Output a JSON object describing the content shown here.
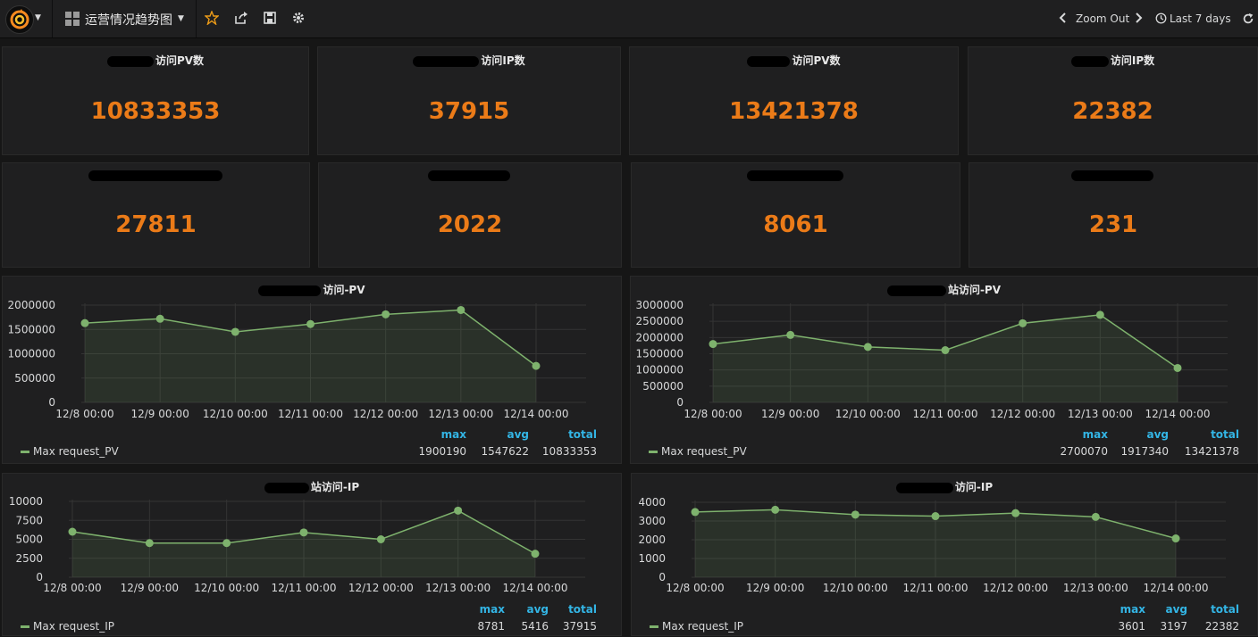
{
  "navbar": {
    "dashboard_title": "运营情况趋势图",
    "zoom_out_label": "Zoom Out",
    "time_range_label": "Last 7 days"
  },
  "colors": {
    "stat_value": "#eb7b18",
    "series": "#7eb26d",
    "legend_header": "#33b5e5"
  },
  "stats": [
    {
      "title_suffix": "访问PV数",
      "value": "10833353"
    },
    {
      "title_suffix": "访问IP数",
      "value": "37915"
    },
    {
      "title_suffix": "访问PV数",
      "value": "13421378"
    },
    {
      "title_suffix": "访问IP数",
      "value": "22382"
    },
    {
      "title_suffix": "",
      "value": "27811"
    },
    {
      "title_suffix": "",
      "value": "2022"
    },
    {
      "title_suffix": "",
      "value": "8061"
    },
    {
      "title_suffix": "",
      "value": "231"
    }
  ],
  "graphs": [
    {
      "title_suffix": "访问-PV",
      "legend_name": "Max request_PV",
      "legend_headers": [
        "max",
        "avg",
        "total"
      ],
      "legend_values": [
        "1900190",
        "1547622",
        "10833353"
      ]
    },
    {
      "title_suffix": "站访问-PV",
      "legend_name": "Max request_PV",
      "legend_headers": [
        "max",
        "avg",
        "total"
      ],
      "legend_values": [
        "2700070",
        "1917340",
        "13421378"
      ]
    },
    {
      "title_suffix": "站访问-IP",
      "legend_name": "Max request_IP",
      "legend_headers": [
        "max",
        "avg",
        "total"
      ],
      "legend_values": [
        "8781",
        "5416",
        "37915"
      ]
    },
    {
      "title_suffix": "访问-IP",
      "legend_name": "Max request_IP",
      "legend_headers": [
        "max",
        "avg",
        "total"
      ],
      "legend_values": [
        "3601",
        "3197",
        "22382"
      ]
    }
  ],
  "chart_data": [
    {
      "type": "area",
      "categories": [
        "12/8 00:00",
        "12/9 00:00",
        "12/10 00:00",
        "12/11 00:00",
        "12/12 00:00",
        "12/13 00:00",
        "12/14 00:00"
      ],
      "series": [
        {
          "name": "Max request_PV",
          "values": [
            1630000,
            1720000,
            1450000,
            1610000,
            1810000,
            1900190,
            750000
          ]
        }
      ],
      "yticks": [
        "0",
        "500000",
        "1000000",
        "1500000",
        "2000000"
      ],
      "ylim": [
        0,
        2000000
      ],
      "grid": true,
      "legend_position": "bottom"
    },
    {
      "type": "area",
      "categories": [
        "12/8 00:00",
        "12/9 00:00",
        "12/10 00:00",
        "12/11 00:00",
        "12/12 00:00",
        "12/13 00:00",
        "12/14 00:00"
      ],
      "series": [
        {
          "name": "Max request_PV",
          "values": [
            1800000,
            2080000,
            1710000,
            1610000,
            2440000,
            2700070,
            1060000
          ]
        }
      ],
      "yticks": [
        "0",
        "500000",
        "1000000",
        "1500000",
        "2000000",
        "2500000",
        "3000000"
      ],
      "ylim": [
        0,
        3000000
      ],
      "grid": true,
      "legend_position": "bottom"
    },
    {
      "type": "area",
      "categories": [
        "12/8 00:00",
        "12/9 00:00",
        "12/10 00:00",
        "12/11 00:00",
        "12/12 00:00",
        "12/13 00:00",
        "12/14 00:00"
      ],
      "series": [
        {
          "name": "Max request_IP",
          "values": [
            6000,
            4500,
            4500,
            5900,
            5000,
            8781,
            3100
          ]
        }
      ],
      "yticks": [
        "0",
        "2500",
        "5000",
        "7500",
        "10000"
      ],
      "ylim": [
        0,
        10000
      ],
      "grid": true,
      "legend_position": "bottom"
    },
    {
      "type": "area",
      "categories": [
        "12/8 00:00",
        "12/9 00:00",
        "12/10 00:00",
        "12/11 00:00",
        "12/12 00:00",
        "12/13 00:00",
        "12/14 00:00"
      ],
      "series": [
        {
          "name": "Max request_IP",
          "values": [
            3480,
            3601,
            3340,
            3260,
            3420,
            3220,
            2070
          ]
        }
      ],
      "yticks": [
        "0",
        "1000",
        "2000",
        "3000",
        "4000"
      ],
      "ylim": [
        0,
        4000
      ],
      "grid": true,
      "legend_position": "bottom"
    }
  ]
}
